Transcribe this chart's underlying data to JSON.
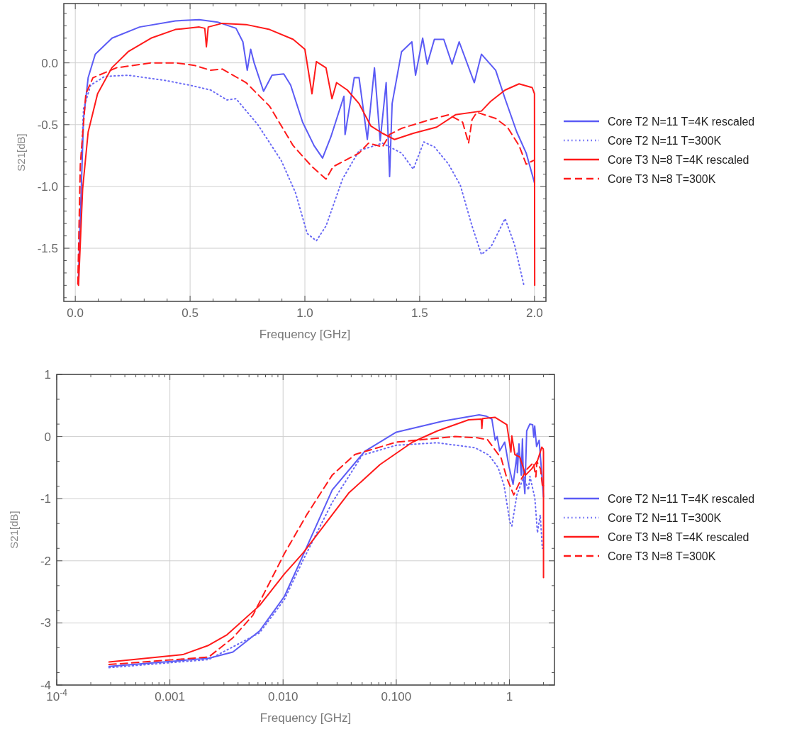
{
  "chart_data": [
    {
      "type": "line",
      "xlabel": "Frequency [GHz]",
      "ylabel": "S21[dB]",
      "xlim": [
        -0.05,
        2.05
      ],
      "ylim": [
        -1.93,
        0.48
      ],
      "grid": true,
      "legend": "right",
      "xticks": [
        {
          "value": 0,
          "label": "0.0"
        },
        {
          "value": 0.1,
          "label": null
        },
        {
          "value": 0.2,
          "label": null
        },
        {
          "value": 0.3,
          "label": null
        },
        {
          "value": 0.4,
          "label": null
        },
        {
          "value": 0.5,
          "label": "0.5"
        },
        {
          "value": 0.6,
          "label": null
        },
        {
          "value": 0.7,
          "label": null
        },
        {
          "value": 0.8,
          "label": null
        },
        {
          "value": 0.9,
          "label": null
        },
        {
          "value": 1,
          "label": "1.0"
        },
        {
          "value": 1.1,
          "label": null
        },
        {
          "value": 1.2,
          "label": null
        },
        {
          "value": 1.3,
          "label": null
        },
        {
          "value": 1.4,
          "label": null
        },
        {
          "value": 1.5,
          "label": "1.5"
        },
        {
          "value": 1.6,
          "label": null
        },
        {
          "value": 1.7,
          "label": null
        },
        {
          "value": 1.8,
          "label": null
        },
        {
          "value": 1.9,
          "label": null
        },
        {
          "value": 2,
          "label": "2.0"
        }
      ],
      "yticks": [
        {
          "value": 0.4,
          "label": null
        },
        {
          "value": 0.3,
          "label": null
        },
        {
          "value": 0.2,
          "label": null
        },
        {
          "value": 0.1,
          "label": null
        },
        {
          "value": 0,
          "label": "0.0"
        },
        {
          "value": -0.1,
          "label": null
        },
        {
          "value": -0.2,
          "label": null
        },
        {
          "value": -0.3,
          "label": null
        },
        {
          "value": -0.4,
          "label": null
        },
        {
          "value": -0.5,
          "label": "-0.5"
        },
        {
          "value": -0.6,
          "label": null
        },
        {
          "value": -0.7,
          "label": null
        },
        {
          "value": -0.8,
          "label": null
        },
        {
          "value": -0.9,
          "label": null
        },
        {
          "value": -1,
          "label": "-1.0"
        },
        {
          "value": -1.1,
          "label": null
        },
        {
          "value": -1.2,
          "label": null
        },
        {
          "value": -1.3,
          "label": null
        },
        {
          "value": -1.4,
          "label": null
        },
        {
          "value": -1.5,
          "label": "-1.5"
        },
        {
          "value": -1.6,
          "label": null
        },
        {
          "value": -1.7,
          "label": null
        },
        {
          "value": -1.8,
          "label": null
        },
        {
          "value": -1.9,
          "label": null
        }
      ],
      "series": [
        {
          "name": "Core T2 N=11 T=4K rescaled",
          "color": "#5b5bf5",
          "line_style": "solid",
          "x": [
            0.013,
            0.026,
            0.036,
            0.056,
            0.087,
            0.16,
            0.28,
            0.436,
            0.54,
            0.62,
            0.7,
            0.73,
            0.749,
            0.764,
            0.779,
            0.82,
            0.857,
            0.908,
            0.938,
            0.99,
            1.04,
            1.077,
            1.113,
            1.17,
            1.175,
            1.215,
            1.236,
            1.272,
            1.303,
            1.328,
            1.354,
            1.369,
            1.38,
            1.421,
            1.466,
            1.482,
            1.513,
            1.533,
            1.564,
            1.605,
            1.641,
            1.672,
            1.738,
            1.769,
            1.831,
            1.872,
            1.923,
            1.964,
            2.0
          ],
          "values": [
            -1.79,
            -1.02,
            -0.45,
            -0.12,
            0.07,
            0.2,
            0.29,
            0.34,
            0.35,
            0.33,
            0.28,
            0.17,
            -0.06,
            0.11,
            0.0,
            -0.23,
            -0.1,
            -0.09,
            -0.18,
            -0.48,
            -0.67,
            -0.77,
            -0.6,
            -0.27,
            -0.58,
            -0.12,
            -0.12,
            -0.62,
            -0.04,
            -0.63,
            -0.16,
            -0.92,
            -0.33,
            0.09,
            0.17,
            -0.1,
            0.2,
            -0.01,
            0.19,
            0.19,
            -0.01,
            0.17,
            -0.16,
            0.07,
            -0.06,
            -0.29,
            -0.56,
            -0.73,
            -0.97
          ]
        },
        {
          "name": "Core T2 N=11 T=300K",
          "color": "#6a6af5",
          "line_style": "dotted",
          "x": [
            0.027,
            0.036,
            0.067,
            0.128,
            0.23,
            0.385,
            0.497,
            0.59,
            0.66,
            0.7,
            0.795,
            0.897,
            0.959,
            1.01,
            1.05,
            1.092,
            1.164,
            1.236,
            1.338,
            1.421,
            1.472,
            1.518,
            1.564,
            1.626,
            1.677,
            1.728,
            1.769,
            1.81,
            1.872,
            1.913,
            1.954
          ],
          "values": [
            -0.75,
            -0.37,
            -0.18,
            -0.11,
            -0.1,
            -0.14,
            -0.18,
            -0.22,
            -0.3,
            -0.29,
            -0.5,
            -0.79,
            -1.05,
            -1.38,
            -1.44,
            -1.32,
            -0.94,
            -0.71,
            -0.65,
            -0.73,
            -0.86,
            -0.64,
            -0.68,
            -0.82,
            -0.99,
            -1.32,
            -1.55,
            -1.49,
            -1.26,
            -1.47,
            -1.8
          ]
        },
        {
          "name": "Core T3 N=8 T=4K rescaled",
          "color": "#ff1a1a",
          "line_style": "solid",
          "x": [
            0.014,
            0.032,
            0.056,
            0.097,
            0.159,
            0.23,
            0.33,
            0.436,
            0.54,
            0.564,
            0.571,
            0.579,
            0.64,
            0.744,
            0.846,
            0.949,
            1.0,
            1.031,
            1.05,
            1.092,
            1.118,
            1.138,
            1.185,
            1.236,
            1.287,
            1.338,
            1.39,
            1.472,
            1.574,
            1.656,
            1.769,
            1.81,
            1.872,
            1.933,
            1.99,
            2.0,
            2.001
          ],
          "values": [
            -1.8,
            -1.02,
            -0.56,
            -0.25,
            -0.04,
            0.09,
            0.2,
            0.27,
            0.29,
            0.28,
            0.13,
            0.29,
            0.32,
            0.31,
            0.27,
            0.19,
            0.11,
            -0.25,
            0.01,
            -0.04,
            -0.29,
            -0.16,
            -0.22,
            -0.33,
            -0.51,
            -0.57,
            -0.62,
            -0.57,
            -0.52,
            -0.42,
            -0.39,
            -0.31,
            -0.22,
            -0.17,
            -0.2,
            -0.25,
            -1.8
          ]
        },
        {
          "name": "Core T3 N=8 T=300K",
          "color": "#ff1a1a",
          "line_style": "dashed",
          "x": [
            0.011,
            0.022,
            0.046,
            0.077,
            0.179,
            0.33,
            0.436,
            0.518,
            0.59,
            0.64,
            0.744,
            0.846,
            0.949,
            1.031,
            1.092,
            1.123,
            1.236,
            1.277,
            1.338,
            1.369,
            1.421,
            1.492,
            1.544,
            1.626,
            1.687,
            1.713,
            1.728,
            1.749,
            1.831,
            1.882,
            1.933,
            1.964,
            1.995
          ],
          "values": [
            -1.79,
            -0.82,
            -0.25,
            -0.12,
            -0.04,
            0.0,
            0.0,
            -0.02,
            -0.06,
            -0.05,
            -0.16,
            -0.35,
            -0.67,
            -0.84,
            -0.94,
            -0.84,
            -0.73,
            -0.65,
            -0.68,
            -0.58,
            -0.53,
            -0.49,
            -0.46,
            -0.42,
            -0.48,
            -0.65,
            -0.46,
            -0.4,
            -0.45,
            -0.52,
            -0.67,
            -0.82,
            -0.79
          ]
        }
      ]
    },
    {
      "type": "line",
      "xlabel": "Frequency [GHz]",
      "ylabel": "S21[dB]",
      "log": "x",
      "xlim": [
        0.0001,
        2.5
      ],
      "ylim": [
        -4,
        1
      ],
      "grid": true,
      "legend": "right",
      "xticks": [
        {
          "value": 0.0001,
          "label": "10$^{-4}$"
        },
        {
          "value": 0.0002,
          "label": null
        },
        {
          "value": 0.0003,
          "label": null
        },
        {
          "value": 0.0004,
          "label": null
        },
        {
          "value": 0.0005,
          "label": null
        },
        {
          "value": 0.0006,
          "label": null
        },
        {
          "value": 0.0007,
          "label": null
        },
        {
          "value": 0.0008,
          "label": null
        },
        {
          "value": 0.0009,
          "label": null
        },
        {
          "value": 0.001,
          "label": "0.001"
        },
        {
          "value": 0.002,
          "label": null
        },
        {
          "value": 0.003,
          "label": null
        },
        {
          "value": 0.004,
          "label": null
        },
        {
          "value": 0.005,
          "label": null
        },
        {
          "value": 0.006,
          "label": null
        },
        {
          "value": 0.007,
          "label": null
        },
        {
          "value": 0.008,
          "label": null
        },
        {
          "value": 0.009,
          "label": null
        },
        {
          "value": 0.01,
          "label": "0.010"
        },
        {
          "value": 0.02,
          "label": null
        },
        {
          "value": 0.03,
          "label": null
        },
        {
          "value": 0.04,
          "label": null
        },
        {
          "value": 0.05,
          "label": null
        },
        {
          "value": 0.06,
          "label": null
        },
        {
          "value": 0.07,
          "label": null
        },
        {
          "value": 0.08,
          "label": null
        },
        {
          "value": 0.09,
          "label": null
        },
        {
          "value": 0.1,
          "label": "0.100"
        },
        {
          "value": 0.2,
          "label": null
        },
        {
          "value": 0.3,
          "label": null
        },
        {
          "value": 0.4,
          "label": null
        },
        {
          "value": 0.5,
          "label": null
        },
        {
          "value": 0.6,
          "label": null
        },
        {
          "value": 0.7,
          "label": null
        },
        {
          "value": 0.8,
          "label": null
        },
        {
          "value": 0.9,
          "label": null
        },
        {
          "value": 1,
          "label": "1"
        },
        {
          "value": 2,
          "label": null
        }
      ],
      "yticks": [
        1,
        {
          "value": 0.6,
          "label": null
        },
        {
          "value": 0.2,
          "label": null
        },
        0,
        {
          "value": -0.4,
          "label": null
        },
        {
          "value": -0.8,
          "label": null
        },
        -1,
        {
          "value": -1.4,
          "label": null
        },
        {
          "value": -1.8,
          "label": null
        },
        -2,
        {
          "value": -2.4,
          "label": null
        },
        {
          "value": -2.8,
          "label": null
        },
        -3,
        {
          "value": -3.4,
          "label": null
        },
        {
          "value": -3.8,
          "label": null
        },
        -4
      ],
      "series": [
        {
          "name": "Core T2 N=11 T=4K rescaled",
          "color": "#5b5bf5",
          "line_style": "solid",
          "x": [
            0.00029,
            0.0022,
            0.0036,
            0.0062,
            0.0103,
            0.0151,
            0.0272,
            0.0525,
            0.1,
            0.26,
            0.54,
            0.62,
            0.7,
            0.749,
            0.779,
            0.82,
            0.908,
            0.99,
            1.077,
            1.17,
            1.175,
            1.215,
            1.272,
            1.303,
            1.328,
            1.369,
            1.421,
            1.513,
            1.605,
            1.641,
            1.672,
            1.738,
            1.831,
            1.923,
            2.0
          ],
          "values": [
            -3.7,
            -3.57,
            -3.47,
            -3.13,
            -2.57,
            -1.9,
            -0.86,
            -0.24,
            0.07,
            0.25,
            0.35,
            0.33,
            0.28,
            -0.06,
            0.0,
            -0.23,
            -0.09,
            -0.48,
            -0.77,
            -0.27,
            -0.58,
            -0.12,
            -0.62,
            -0.04,
            -0.63,
            -0.92,
            0.09,
            0.2,
            0.19,
            -0.01,
            0.17,
            -0.16,
            -0.06,
            -0.56,
            -0.97
          ]
        },
        {
          "name": "Core T2 N=11 T=300K",
          "color": "#6a6af5",
          "line_style": "dotted",
          "x": [
            0.00029,
            0.0022,
            0.0062,
            0.0103,
            0.0151,
            0.027,
            0.05,
            0.1,
            0.23,
            0.497,
            0.66,
            0.795,
            0.897,
            1.01,
            1.05,
            1.164,
            1.338,
            1.472,
            1.518,
            1.677,
            1.769,
            1.872,
            1.954
          ],
          "values": [
            -3.72,
            -3.59,
            -3.16,
            -2.62,
            -1.98,
            -1.07,
            -0.3,
            -0.14,
            -0.1,
            -0.18,
            -0.3,
            -0.5,
            -0.79,
            -1.38,
            -1.44,
            -0.94,
            -0.65,
            -0.86,
            -0.64,
            -0.99,
            -1.55,
            -1.26,
            -1.8
          ]
        },
        {
          "name": "Core T3 N=8 T=4K rescaled",
          "color": "#ff1a1a",
          "line_style": "solid",
          "x": [
            0.00029,
            0.0013,
            0.0022,
            0.0032,
            0.0062,
            0.0103,
            0.0151,
            0.038,
            0.072,
            0.139,
            0.23,
            0.436,
            0.564,
            0.571,
            0.579,
            0.744,
            0.949,
            1.031,
            1.05,
            1.118,
            1.236,
            1.39,
            1.574,
            1.769,
            1.933,
            1.99,
            2.0,
            2.001
          ],
          "values": [
            -3.63,
            -3.51,
            -3.36,
            -3.19,
            -2.72,
            -2.21,
            -1.87,
            -0.91,
            -0.45,
            -0.09,
            0.09,
            0.27,
            0.28,
            0.13,
            0.29,
            0.31,
            0.19,
            -0.25,
            0.01,
            -0.29,
            -0.33,
            -0.62,
            -0.52,
            -0.39,
            -0.17,
            -0.2,
            -0.25,
            -2.27
          ]
        },
        {
          "name": "Core T3 N=8 T=300K",
          "color": "#ff1a1a",
          "line_style": "dashed",
          "x": [
            0.00029,
            0.0022,
            0.0036,
            0.0054,
            0.0103,
            0.0163,
            0.0272,
            0.043,
            0.1,
            0.33,
            0.518,
            0.64,
            0.846,
            0.949,
            1.092,
            1.236,
            1.421,
            1.626,
            1.713,
            1.749,
            1.882,
            1.964,
            1.995
          ],
          "values": [
            -3.67,
            -3.55,
            -3.24,
            -2.88,
            -1.88,
            -1.25,
            -0.62,
            -0.29,
            -0.09,
            0.0,
            -0.02,
            -0.05,
            -0.35,
            -0.67,
            -0.94,
            -0.73,
            -0.53,
            -0.42,
            -0.65,
            -0.4,
            -0.52,
            -0.82,
            -0.79
          ]
        }
      ]
    }
  ]
}
